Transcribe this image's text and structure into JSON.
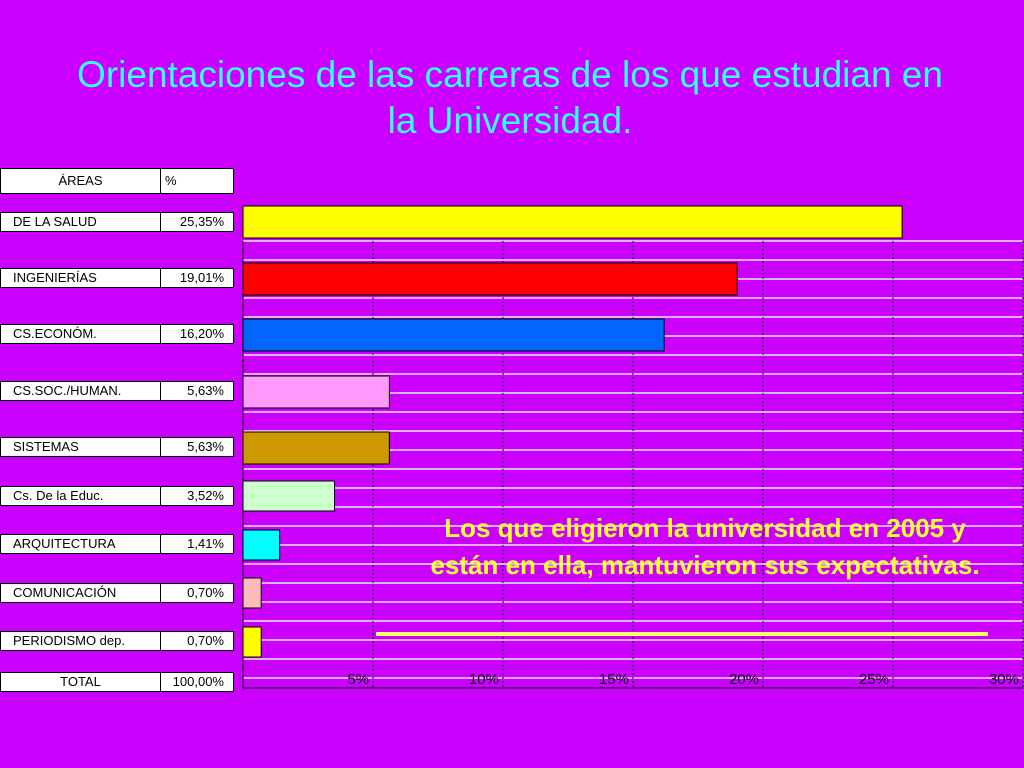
{
  "slide": {
    "title": "Orientaciones de las carreras de los que estudian en la Universidad.",
    "annotation": "Los que eligieron la universidad en 2005 y están en ella, mantuvieron sus expectativas."
  },
  "table": {
    "header_area": "ÁREAS",
    "header_pct": "%",
    "rows": [
      {
        "name": "DE LA SALUD",
        "pct": "25,35%"
      },
      {
        "name": "INGENIERÍAS",
        "pct": "19,01%"
      },
      {
        "name": "CS.ECONÓM.",
        "pct": "16,20%"
      },
      {
        "name": "CS.SOC./HUMAN.",
        "pct": "5,63%"
      },
      {
        "name": "SISTEMAS",
        "pct": "5,63%"
      },
      {
        "name": "Cs. De la Educ.",
        "pct": "3,52%"
      },
      {
        "name": "ARQUITECTURA",
        "pct": "1,41%"
      },
      {
        "name": "COMUNICACIÓN",
        "pct": "0,70%"
      },
      {
        "name": "PERIODISMO dep.",
        "pct": "0,70%"
      }
    ],
    "total_label": "TOTAL",
    "total_pct": "100,00%"
  },
  "chart_data": {
    "type": "bar",
    "orientation": "horizontal",
    "categories": [
      "DE LA SALUD",
      "INGENIERÍAS",
      "CS.ECONÓM.",
      "CS.SOC./HUMAN.",
      "SISTEMAS",
      "Cs. De la Educ.",
      "ARQUITECTURA",
      "COMUNICACIÓN",
      "PERIODISMO dep."
    ],
    "values": [
      25.35,
      19.01,
      16.2,
      5.63,
      5.63,
      3.52,
      1.41,
      0.7,
      0.7
    ],
    "colors": [
      "#ffff00",
      "#ff0000",
      "#0066ff",
      "#ff99ff",
      "#cc9900",
      "#ccffcc",
      "#00ffff",
      "#ffbbbb",
      "#ffff00"
    ],
    "xlim": [
      0,
      30
    ],
    "xticks": [
      5,
      10,
      15,
      20,
      25,
      30
    ],
    "xtick_labels": [
      "5%",
      "10%",
      "15%",
      "20%",
      "25%",
      "30%"
    ],
    "grid": true,
    "title": "",
    "xlabel": "",
    "ylabel": ""
  }
}
